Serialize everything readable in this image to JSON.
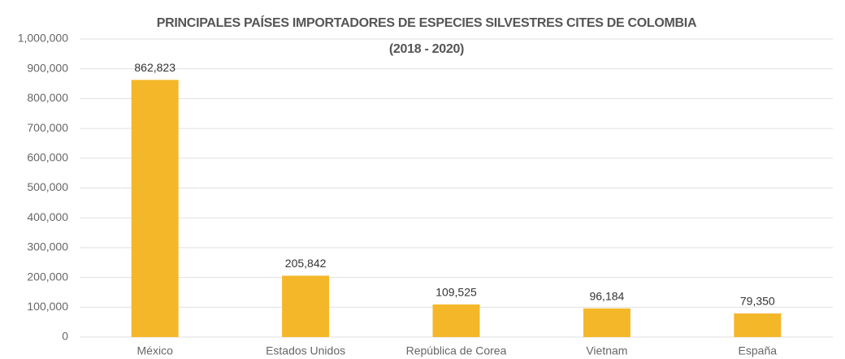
{
  "chart_data": {
    "type": "bar",
    "title": "PRINCIPALES PAÍSES IMPORTADORES DE ESPECIES SILVESTRES CITES DE COLOMBIA",
    "subtitle": "(2018 - 2020)",
    "categories": [
      "México",
      "Estados Unidos",
      "República de Corea",
      "Vietnam",
      "España"
    ],
    "values": [
      862823,
      205842,
      109525,
      96184,
      79350
    ],
    "value_labels": [
      "862,823",
      "205,842",
      "109,525",
      "96,184",
      "79,350"
    ],
    "color": "#f4b72a",
    "ylim": [
      0,
      1000000
    ],
    "yticks": [
      0,
      {
        "value": 100000,
        "label": "100,000"
      },
      {
        "value": 200000,
        "label": "200,000"
      },
      {
        "value": 300000,
        "label": "300,000"
      },
      {
        "value": 400000,
        "label": "400,000"
      },
      {
        "value": 500000,
        "label": "500,000"
      },
      {
        "value": 600000,
        "label": "600,000"
      },
      {
        "value": 700000,
        "label": "700,000"
      },
      {
        "value": 800000,
        "label": "800,000"
      },
      {
        "value": 900000,
        "label": "900,000"
      },
      {
        "value": 1000000,
        "label": "1,000,000"
      }
    ],
    "grid": true
  }
}
